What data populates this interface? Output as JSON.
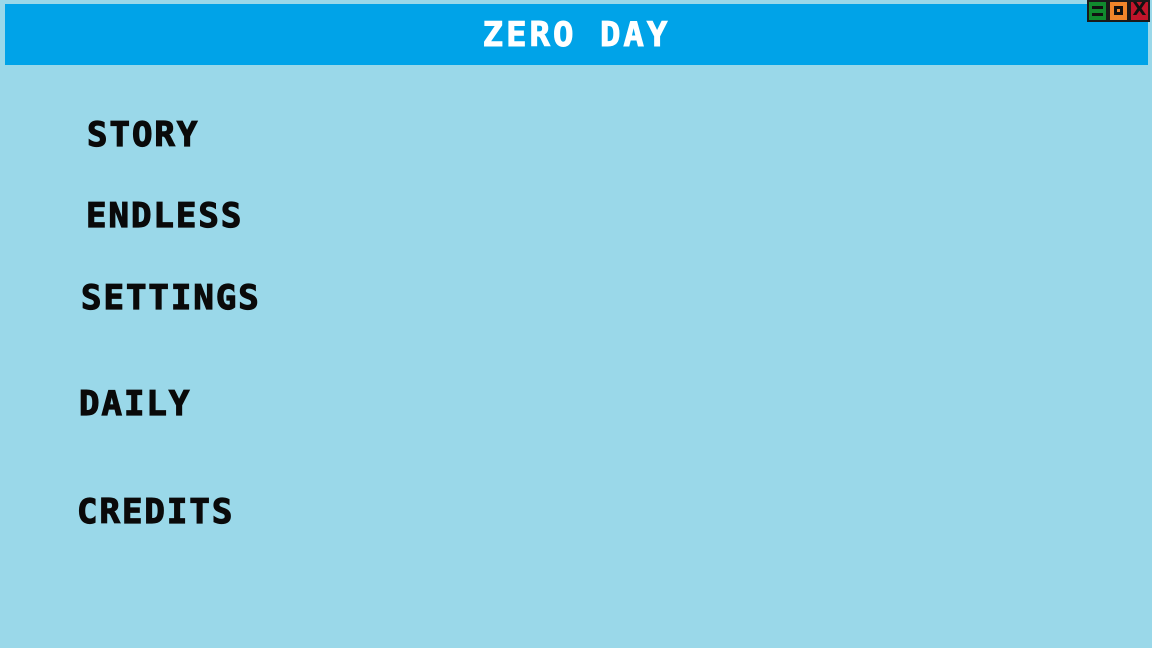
{
  "title": "ZERO DAY",
  "window_controls": {
    "minimize_icon": "minimize-icon",
    "maximize_icon": "maximize-icon",
    "close_icon": "close-icon",
    "close_glyph": "X",
    "colors": {
      "minimize": "#118a2e",
      "maximize": "#f0852a",
      "close": "#c0142a"
    }
  },
  "menu": {
    "items": [
      {
        "label": "STORY"
      },
      {
        "label": "ENDLESS"
      },
      {
        "label": "SETTINGS"
      },
      {
        "label": "DAILY"
      },
      {
        "label": "CREDITS"
      }
    ]
  },
  "colors": {
    "background": "#9ad8e9",
    "title_bar": "#00a3e8",
    "title_text": "#ffffff",
    "menu_text": "#0a0a0a"
  }
}
